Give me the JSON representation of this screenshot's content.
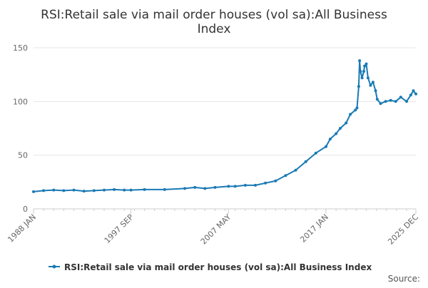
{
  "chart_data": {
    "type": "line",
    "title": "RSI:Retail sale via mail order houses (vol sa):All Business Index",
    "title_lines": [
      "RSI:Retail sale via mail order houses (vol sa):All Business",
      "Index"
    ],
    "xlabel": "",
    "ylabel": "",
    "x_start": "1988 JAN",
    "x_end": "2025 DEC",
    "x_tick_labels": [
      "1988 JAN",
      "1997 SEP",
      "2007 MAY",
      "2017 JAN",
      "2025 DEC"
    ],
    "ylim": [
      0,
      150
    ],
    "y_ticks": [
      0,
      50,
      100,
      150
    ],
    "grid": "horizontal",
    "legend_position": "bottom",
    "series": [
      {
        "name": "RSI:Retail sale via mail order houses (vol sa):All Business Index",
        "color": "#1a7ab5",
        "points": [
          [
            "1988 JAN",
            16
          ],
          [
            "1989 JAN",
            17
          ],
          [
            "1990 JAN",
            17.5
          ],
          [
            "1991 JAN",
            17
          ],
          [
            "1992 JAN",
            17.5
          ],
          [
            "1993 JAN",
            16.5
          ],
          [
            "1994 JAN",
            17
          ],
          [
            "1995 JAN",
            17.5
          ],
          [
            "1996 JAN",
            18
          ],
          [
            "1997 JAN",
            17.5
          ],
          [
            "1997 SEP",
            17.5
          ],
          [
            "1999 JAN",
            18
          ],
          [
            "2001 JAN",
            18
          ],
          [
            "2003 JAN",
            19
          ],
          [
            "2004 JAN",
            20
          ],
          [
            "2005 JAN",
            19
          ],
          [
            "2006 JAN",
            20
          ],
          [
            "2007 MAY",
            21
          ],
          [
            "2008 JAN",
            21
          ],
          [
            "2009 JAN",
            22
          ],
          [
            "2010 JAN",
            22
          ],
          [
            "2011 JAN",
            24
          ],
          [
            "2012 JAN",
            26
          ],
          [
            "2013 JAN",
            31
          ],
          [
            "2014 JAN",
            36
          ],
          [
            "2015 JAN",
            44
          ],
          [
            "2016 JAN",
            52
          ],
          [
            "2017 JAN",
            58
          ],
          [
            "2017 JUN",
            65
          ],
          [
            "2018 JAN",
            70
          ],
          [
            "2018 JUN",
            75
          ],
          [
            "2019 JAN",
            80
          ],
          [
            "2019 JUN",
            88
          ],
          [
            "2019 DEC",
            92
          ],
          [
            "2020 FEB",
            94
          ],
          [
            "2020 APR",
            114
          ],
          [
            "2020 MAY",
            138
          ],
          [
            "2020 JUN",
            128
          ],
          [
            "2020 AUG",
            122
          ],
          [
            "2020 OCT",
            128
          ],
          [
            "2020 NOV",
            133
          ],
          [
            "2021 JAN",
            135
          ],
          [
            "2021 MAR",
            122
          ],
          [
            "2021 JUN",
            115
          ],
          [
            "2021 SEP",
            118
          ],
          [
            "2021 DEC",
            110
          ],
          [
            "2022 FEB",
            102
          ],
          [
            "2022 JUN",
            98
          ],
          [
            "2022 DEC",
            100
          ],
          [
            "2023 JUN",
            101
          ],
          [
            "2023 DEC",
            100
          ],
          [
            "2024 JUN",
            104
          ],
          [
            "2025 JAN",
            100
          ],
          [
            "2025 JUN",
            106
          ],
          [
            "2025 SEP",
            110
          ],
          [
            "2025 DEC",
            107
          ]
        ]
      }
    ]
  },
  "legend": {
    "label": "RSI:Retail sale via mail order houses (vol sa):All Business Index"
  },
  "footer": {
    "source_label": "Source:"
  }
}
